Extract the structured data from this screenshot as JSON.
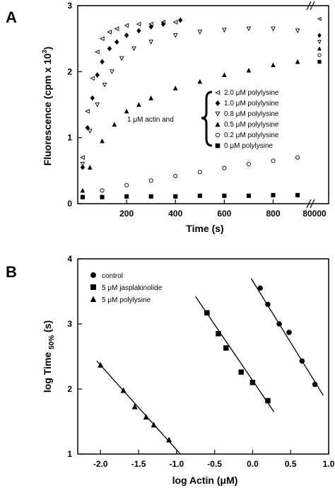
{
  "chart_data": [
    {
      "panel": "A",
      "type": "scatter",
      "xlabel": "Time (s)",
      "ylabel": "Fluorescence (cpm x 10",
      "ylabel_sup": "3",
      "ylabel_close": ")",
      "xlim": [
        0,
        920
      ],
      "ylim": [
        0,
        3
      ],
      "x_ticks": [
        200,
        400,
        600,
        800
      ],
      "x_tick_labels": [
        "200",
        "400",
        "600",
        "800"
      ],
      "x_break_label": "80000",
      "y_ticks": [
        0,
        1,
        2,
        3
      ],
      "y_tick_labels": [
        "0",
        "1",
        "2",
        "3"
      ],
      "legend_prefix": "1 μM actin and",
      "series": [
        {
          "name": "2.0 μM polylysine",
          "marker": "triangle-left-open",
          "x": [
            20,
            40,
            60,
            80,
            100,
            130,
            160,
            200,
            250,
            300,
            350,
            400
          ],
          "y": [
            0.7,
            1.4,
            1.9,
            2.3,
            2.5,
            2.6,
            2.65,
            2.7,
            2.72,
            2.72,
            2.75,
            2.75
          ],
          "end_value": 2.8
        },
        {
          "name": "1.0 μM polylysine",
          "marker": "diamond-filled",
          "x": [
            20,
            40,
            60,
            80,
            100,
            130,
            160,
            200,
            250,
            300,
            350,
            420
          ],
          "y": [
            0.55,
            1.15,
            1.6,
            1.95,
            2.15,
            2.35,
            2.45,
            2.55,
            2.62,
            2.68,
            2.72,
            2.78
          ],
          "end_value": 2.55
        },
        {
          "name": "0.8 μM polylysine",
          "marker": "triangle-down-open",
          "x": [
            20,
            50,
            80,
            110,
            140,
            180,
            230,
            300,
            400,
            500,
            600,
            700,
            800,
            900
          ],
          "y": [
            0.6,
            1.1,
            1.5,
            1.8,
            2.0,
            2.2,
            2.35,
            2.45,
            2.55,
            2.6,
            2.63,
            2.65,
            2.65,
            2.62
          ],
          "end_value": 2.45
        },
        {
          "name": "0.5 μM polylysine",
          "marker": "triangle-filled",
          "x": [
            20,
            50,
            100,
            150,
            200,
            250,
            300,
            400,
            500,
            600,
            700,
            800,
            900
          ],
          "y": [
            0.2,
            0.55,
            0.95,
            1.2,
            1.4,
            1.5,
            1.6,
            1.75,
            1.85,
            1.95,
            2.02,
            2.1,
            2.15
          ],
          "end_value": 2.35
        },
        {
          "name": "0.2 μM polylysine",
          "marker": "circle-open",
          "x": [
            20,
            100,
            200,
            300,
            400,
            500,
            600,
            700,
            800,
            900
          ],
          "y": [
            0.1,
            0.2,
            0.28,
            0.35,
            0.42,
            0.48,
            0.54,
            0.6,
            0.65,
            0.7
          ],
          "end_value": 2.25
        },
        {
          "name": "0  μM polylysine",
          "marker": "square-filled",
          "x": [
            20,
            100,
            200,
            300,
            400,
            500,
            600,
            700,
            800,
            900
          ],
          "y": [
            0.1,
            0.1,
            0.11,
            0.11,
            0.11,
            0.12,
            0.12,
            0.12,
            0.13,
            0.13
          ],
          "end_value": 2.15
        }
      ]
    },
    {
      "panel": "B",
      "type": "scatter",
      "xlabel": "log Actin (",
      "xlabel_unit": "μM",
      "xlabel_close": ")",
      "ylabel": "log Time ",
      "ylabel_sub": "50%",
      "ylabel_tail": " (s)",
      "xlim": [
        -2.3,
        1.0
      ],
      "ylim": [
        1,
        4
      ],
      "x_ticks": [
        -2.0,
        -1.5,
        -1.0,
        -0.5,
        0.0,
        0.5,
        1.0
      ],
      "x_tick_labels": [
        "-2.0",
        "-1.5",
        "-1.0",
        "-0.5",
        "0.0",
        "0.5",
        "1.0"
      ],
      "y_ticks": [
        1,
        2,
        3,
        4
      ],
      "y_tick_labels": [
        "1",
        "2",
        "3",
        "4"
      ],
      "series": [
        {
          "name": "control",
          "marker": "circle-filled",
          "x": [
            0.1,
            0.2,
            0.35,
            0.48,
            0.65,
            0.82
          ],
          "y": [
            3.55,
            3.3,
            3.0,
            2.87,
            2.43,
            2.07
          ],
          "fit": [
            [
              -0.02,
              3.7
            ],
            [
              0.93,
              1.9
            ]
          ]
        },
        {
          "name": "5 μM jasplakinolide",
          "marker": "square-filled",
          "x": [
            -0.6,
            -0.45,
            -0.35,
            -0.15,
            0.0,
            0.2
          ],
          "y": [
            3.17,
            2.85,
            2.63,
            2.26,
            2.1,
            1.82
          ],
          "fit": [
            [
              -0.75,
              3.42
            ],
            [
              0.28,
              1.65
            ]
          ]
        },
        {
          "name": "5 μM polylysine",
          "marker": "triangle-filled",
          "x": [
            -2.0,
            -1.7,
            -1.55,
            -1.4,
            -1.3,
            -1.1
          ],
          "y": [
            2.37,
            1.98,
            1.73,
            1.57,
            1.45,
            1.22
          ],
          "fit": [
            [
              -2.05,
              2.43
            ],
            [
              -0.95,
              1.0
            ]
          ]
        }
      ]
    }
  ]
}
